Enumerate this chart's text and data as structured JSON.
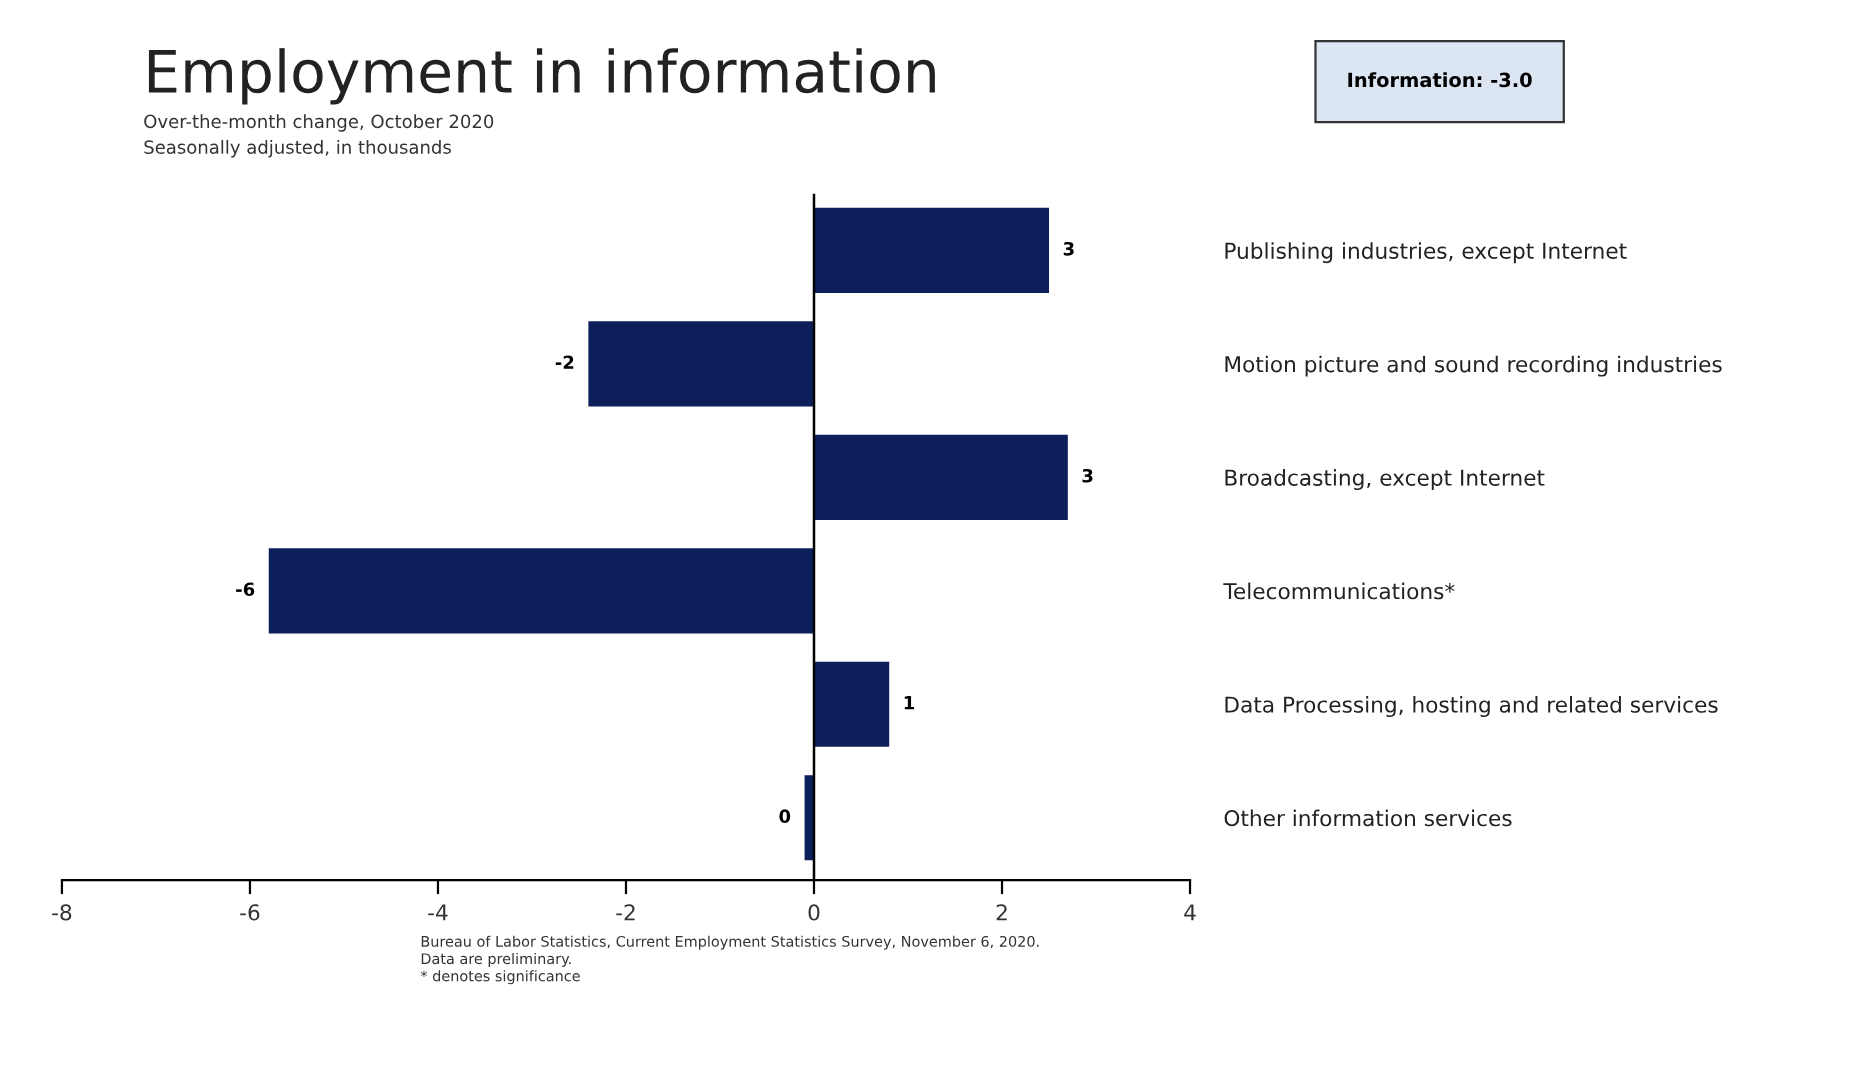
{
  "chart_data": {
    "type": "bar",
    "orientation": "horizontal",
    "title": "Employment in information",
    "subtitle": "Over-the-month change, October 2020\nSeasonally adjusted, in thousands",
    "categories": [
      "Publishing industries, except Internet",
      "Motion picture and sound recording industries",
      "Broadcasting, except Internet",
      "Telecommunications*",
      "Data Processing, hosting and related services",
      "Other information services"
    ],
    "values": [
      2.5,
      -2.4,
      2.7,
      -5.8,
      0.8,
      -0.1
    ],
    "value_labels": [
      "3",
      "-2",
      "3",
      "-6",
      "1",
      "0"
    ],
    "color": "#0c1f5a",
    "xlim": [
      -8,
      4
    ],
    "xticks": [
      -8,
      -6,
      -4,
      -2,
      0,
      2,
      4
    ],
    "grid": false,
    "ref_lines": [
      {
        "axis": "x",
        "value": 0,
        "color": "#000000"
      }
    ],
    "annotations": [
      "Information: -3.0",
      "Bureau of Labor Statistics, Current Employment Statistics Survey, November 6, 2020.\nData are preliminary.\n* denotes significance"
    ]
  }
}
